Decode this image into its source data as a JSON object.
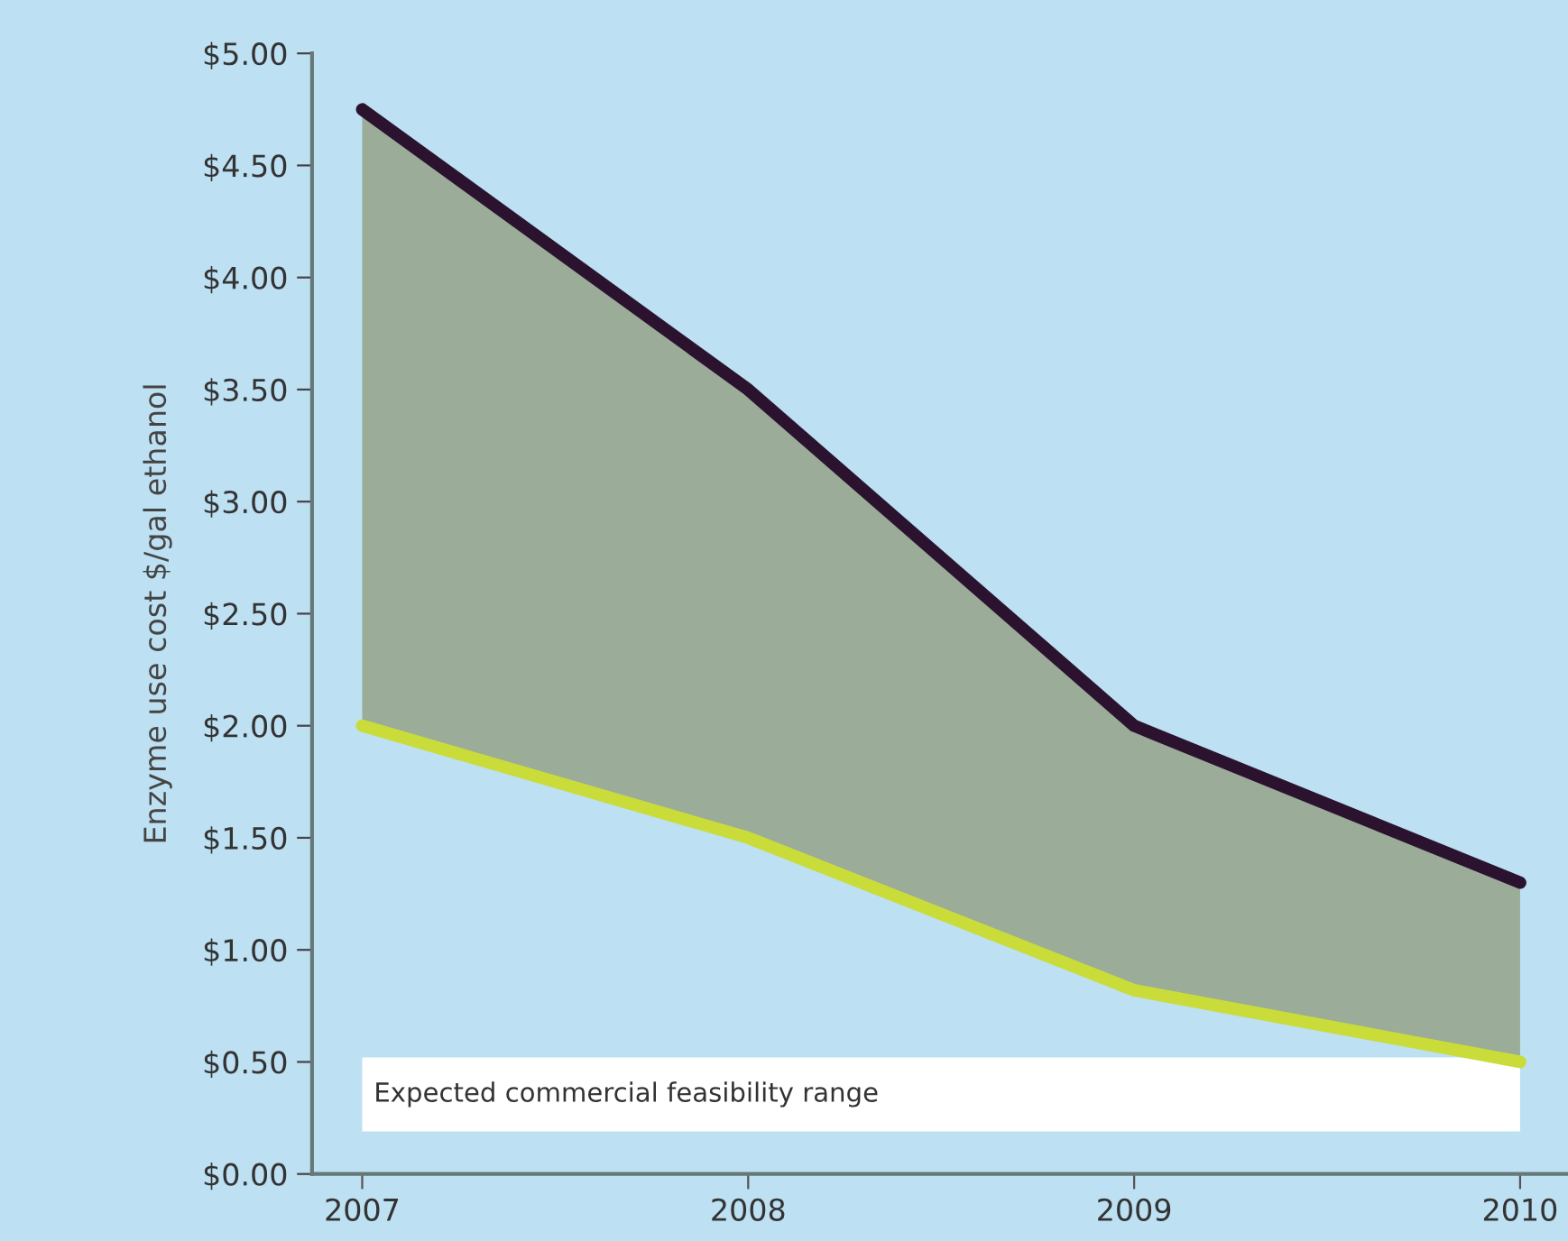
{
  "chart_data": {
    "type": "line",
    "ylabel": "Enzyme use cost $/gal ethanol",
    "x": [
      2007,
      2008,
      2009,
      2010
    ],
    "series": [
      {
        "color": "#2b1330",
        "values": [
          4.75,
          3.5,
          2.0,
          1.3
        ],
        "lower": [
          2.0,
          1.5,
          0.82,
          0.5
        ],
        "upper": [
          4.75,
          3.5,
          2.0,
          1.3
        ]
      },
      {
        "color": "#c9dc3a",
        "values": [
          2.0,
          1.5,
          0.82,
          0.5
        ]
      }
    ],
    "xlim": [
      2006.87,
      2010.12
    ],
    "xticks": [
      2007,
      2008,
      2009,
      2010
    ],
    "ylim": [
      0,
      5.0
    ],
    "yticks": [
      {
        "value": 0,
        "label": "$0.00"
      },
      {
        "value": 0.5,
        "label": "$0.50"
      },
      {
        "value": 1.0,
        "label": "$1.00"
      },
      {
        "value": 1.5,
        "label": "$1.50"
      },
      {
        "value": 2.0,
        "label": "$2.00"
      },
      {
        "value": 2.5,
        "label": "$2.50"
      },
      {
        "value": 3.0,
        "label": "$3.00"
      },
      {
        "value": 3.5,
        "label": "$3.50"
      },
      {
        "value": 4.0,
        "label": "$4.00"
      },
      {
        "value": 4.5,
        "label": "$4.50"
      },
      {
        "value": 5.0,
        "label": "$5.00"
      }
    ],
    "bands": [
      {
        "axis": "y",
        "from": 0.19,
        "to": 0.52,
        "label": "Expected commercial feasibility range",
        "color": "#ffffff"
      }
    ],
    "grid": false,
    "legend": false,
    "marker": "none",
    "line_style": "solid"
  }
}
